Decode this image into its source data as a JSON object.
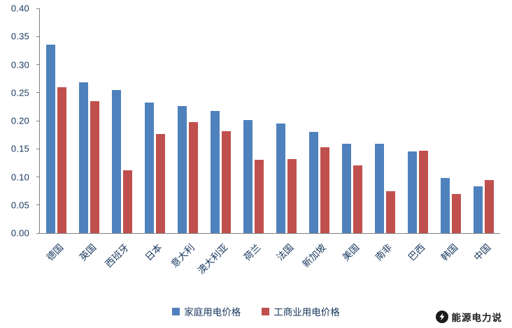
{
  "chart_data": {
    "type": "bar",
    "title": "",
    "xlabel": "",
    "ylabel": "",
    "categories": [
      "德国",
      "英国",
      "西班牙",
      "日本",
      "意大利",
      "澳大利亚",
      "荷兰",
      "法国",
      "新加坡",
      "美国",
      "南非",
      "巴西",
      "韩国",
      "中国"
    ],
    "series": [
      {
        "name": "家庭用电价格",
        "color": "#4F81BD",
        "values": [
          0.335,
          0.268,
          0.255,
          0.232,
          0.226,
          0.217,
          0.201,
          0.195,
          0.18,
          0.159,
          0.159,
          0.145,
          0.098,
          0.083
        ]
      },
      {
        "name": "工商业用电价格",
        "color": "#C0504D",
        "values": [
          0.26,
          0.235,
          0.112,
          0.177,
          0.197,
          0.181,
          0.131,
          0.132,
          0.153,
          0.121,
          0.074,
          0.147,
          0.07,
          0.094
        ]
      }
    ],
    "ylim": [
      0,
      0.4
    ],
    "y_ticks": [
      0.0,
      0.05,
      0.1,
      0.15,
      0.2,
      0.25,
      0.3,
      0.35,
      0.4
    ],
    "grid": false,
    "legend_position": "bottom"
  },
  "watermark": {
    "text": "能源电力说"
  }
}
